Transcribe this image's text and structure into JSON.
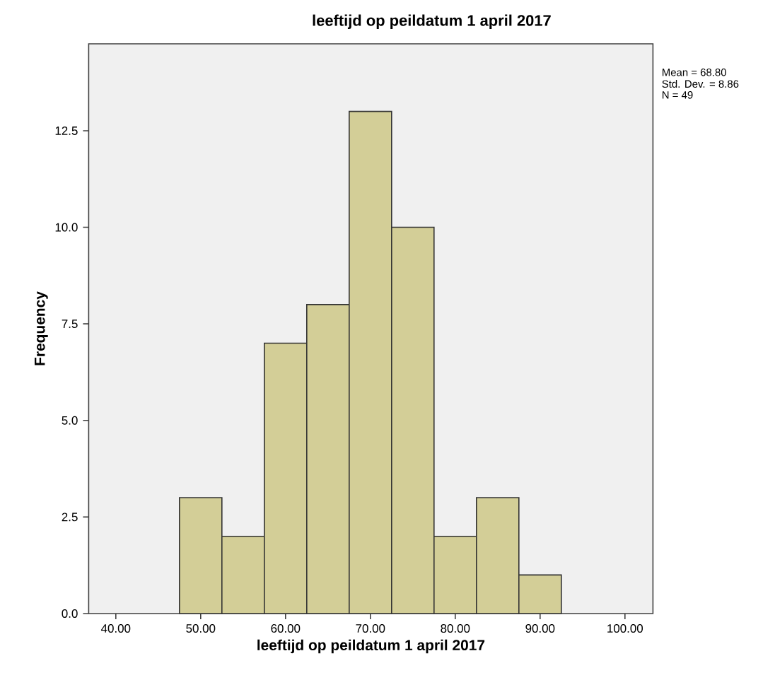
{
  "chart_data": {
    "type": "histogram",
    "title": "leeftijd op peildatum 1 april 2017",
    "xlabel": "leeftijd op peildatum 1 april 2017",
    "ylabel": "Frequency",
    "bins": [
      47.5,
      52.5,
      57.5,
      62.5,
      67.5,
      72.5,
      77.5,
      82.5,
      87.5,
      92.5
    ],
    "values": [
      3,
      2,
      7,
      8,
      13,
      10,
      2,
      3,
      1
    ],
    "color": "#d3ce97",
    "xlim": [
      36.8,
      103.3
    ],
    "ylim": [
      0,
      14.75
    ],
    "xticks": [
      {
        "value": 40,
        "label": "40.00"
      },
      {
        "value": 50,
        "label": "50.00"
      },
      {
        "value": 60,
        "label": "60.00"
      },
      {
        "value": 70,
        "label": "70.00"
      },
      {
        "value": 80,
        "label": "80.00"
      },
      {
        "value": 90,
        "label": "90.00"
      },
      {
        "value": 100,
        "label": "100.00"
      }
    ],
    "yticks": [
      {
        "value": 0,
        "label": "0.0"
      },
      {
        "value": 2.5,
        "label": "2.5"
      },
      {
        "value": 5,
        "label": "5.0"
      },
      {
        "value": 7.5,
        "label": "7.5"
      },
      {
        "value": 10,
        "label": "10.0"
      },
      {
        "value": 12.5,
        "label": "12.5"
      }
    ],
    "annotations": [
      "Mean = 68.80",
      "Std. Dev. = 8.86",
      "N = 49"
    ]
  }
}
